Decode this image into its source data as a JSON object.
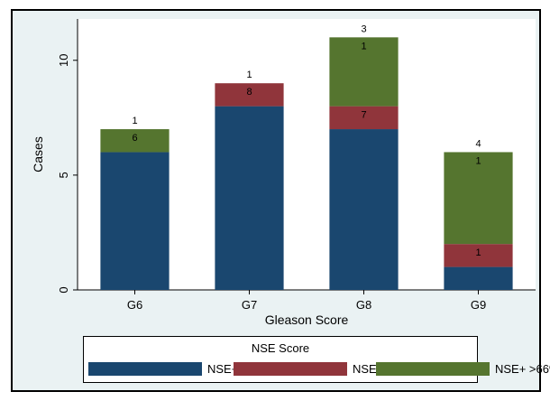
{
  "chart_data": {
    "type": "bar",
    "stacked": true,
    "title": "",
    "xlabel": "Gleason Score",
    "ylabel": "Cases",
    "ylim": [
      0,
      11.8
    ],
    "yticks": [
      "0",
      "5",
      "10"
    ],
    "categories": [
      "G6",
      "G7",
      "G8",
      "G9"
    ],
    "grid": false,
    "series": [
      {
        "name": "NSE+ <33%",
        "color": "#1a476f",
        "values": [
          6,
          8,
          7,
          1
        ],
        "labels": [
          "",
          "",
          "",
          ""
        ]
      },
      {
        "name": "NSE+ 33-66%",
        "color": "#90353b",
        "values": [
          0,
          1,
          1,
          1
        ],
        "labels": [
          "",
          "8",
          "7",
          "1"
        ]
      },
      {
        "name": "NSE+ >66%",
        "color": "#55752f",
        "values": [
          1,
          0,
          3,
          4
        ],
        "labels": [
          "6",
          "",
          "1",
          "1"
        ]
      }
    ],
    "top_labels": [
      "1",
      "1",
      "3",
      "4"
    ],
    "legend": {
      "title": "NSE Score",
      "placement": "bottom"
    }
  }
}
